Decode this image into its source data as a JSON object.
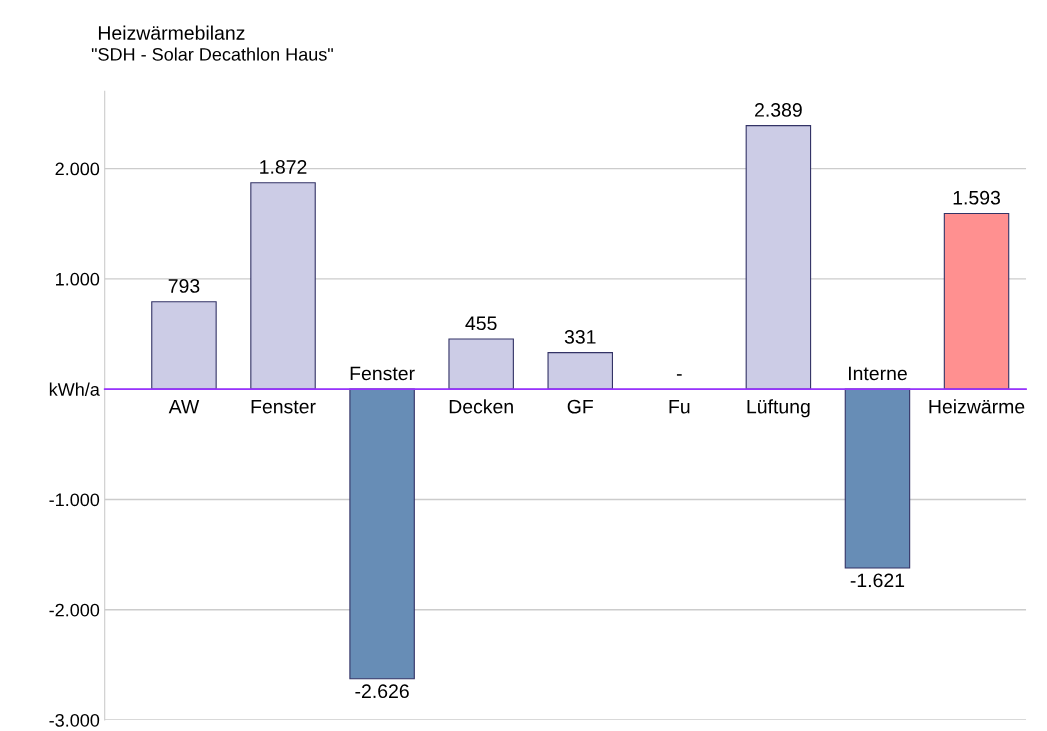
{
  "chart_data": {
    "type": "bar",
    "title": "Heizwärmebilanz",
    "subtitle": "\"SDH - Solar Decathlon Haus\"",
    "categories": [
      "AW",
      "Fenster",
      "Fenster",
      "Decken",
      "GF",
      "Fu",
      "Lüftung",
      "Interne",
      "Heizwärme"
    ],
    "values": [
      793,
      1872,
      -2626,
      455,
      331,
      0,
      2389,
      -1621,
      1593
    ],
    "value_labels": [
      "793",
      "1.872",
      "-2.626",
      "455",
      "331",
      "-",
      "2.389",
      "-1.621",
      "1.593"
    ],
    "colors": [
      "#ccccE6",
      "#ccccE6",
      "#678db6",
      "#ccccE6",
      "#ccccE6",
      "#ccccE6",
      "#ccccE6",
      "#678db6",
      "#ff9090"
    ],
    "ylim": [
      -3000,
      2700
    ],
    "yticks": [
      {
        "value": -3000,
        "label": "-3.000"
      },
      {
        "value": -2000,
        "label": "-2.000"
      },
      {
        "value": -1000,
        "label": "-1.000"
      },
      {
        "value": 0,
        "label": "kWh/a"
      },
      {
        "value": 1000,
        "label": "1.000"
      },
      {
        "value": 2000,
        "label": "2.000"
      }
    ],
    "grid": "y"
  }
}
